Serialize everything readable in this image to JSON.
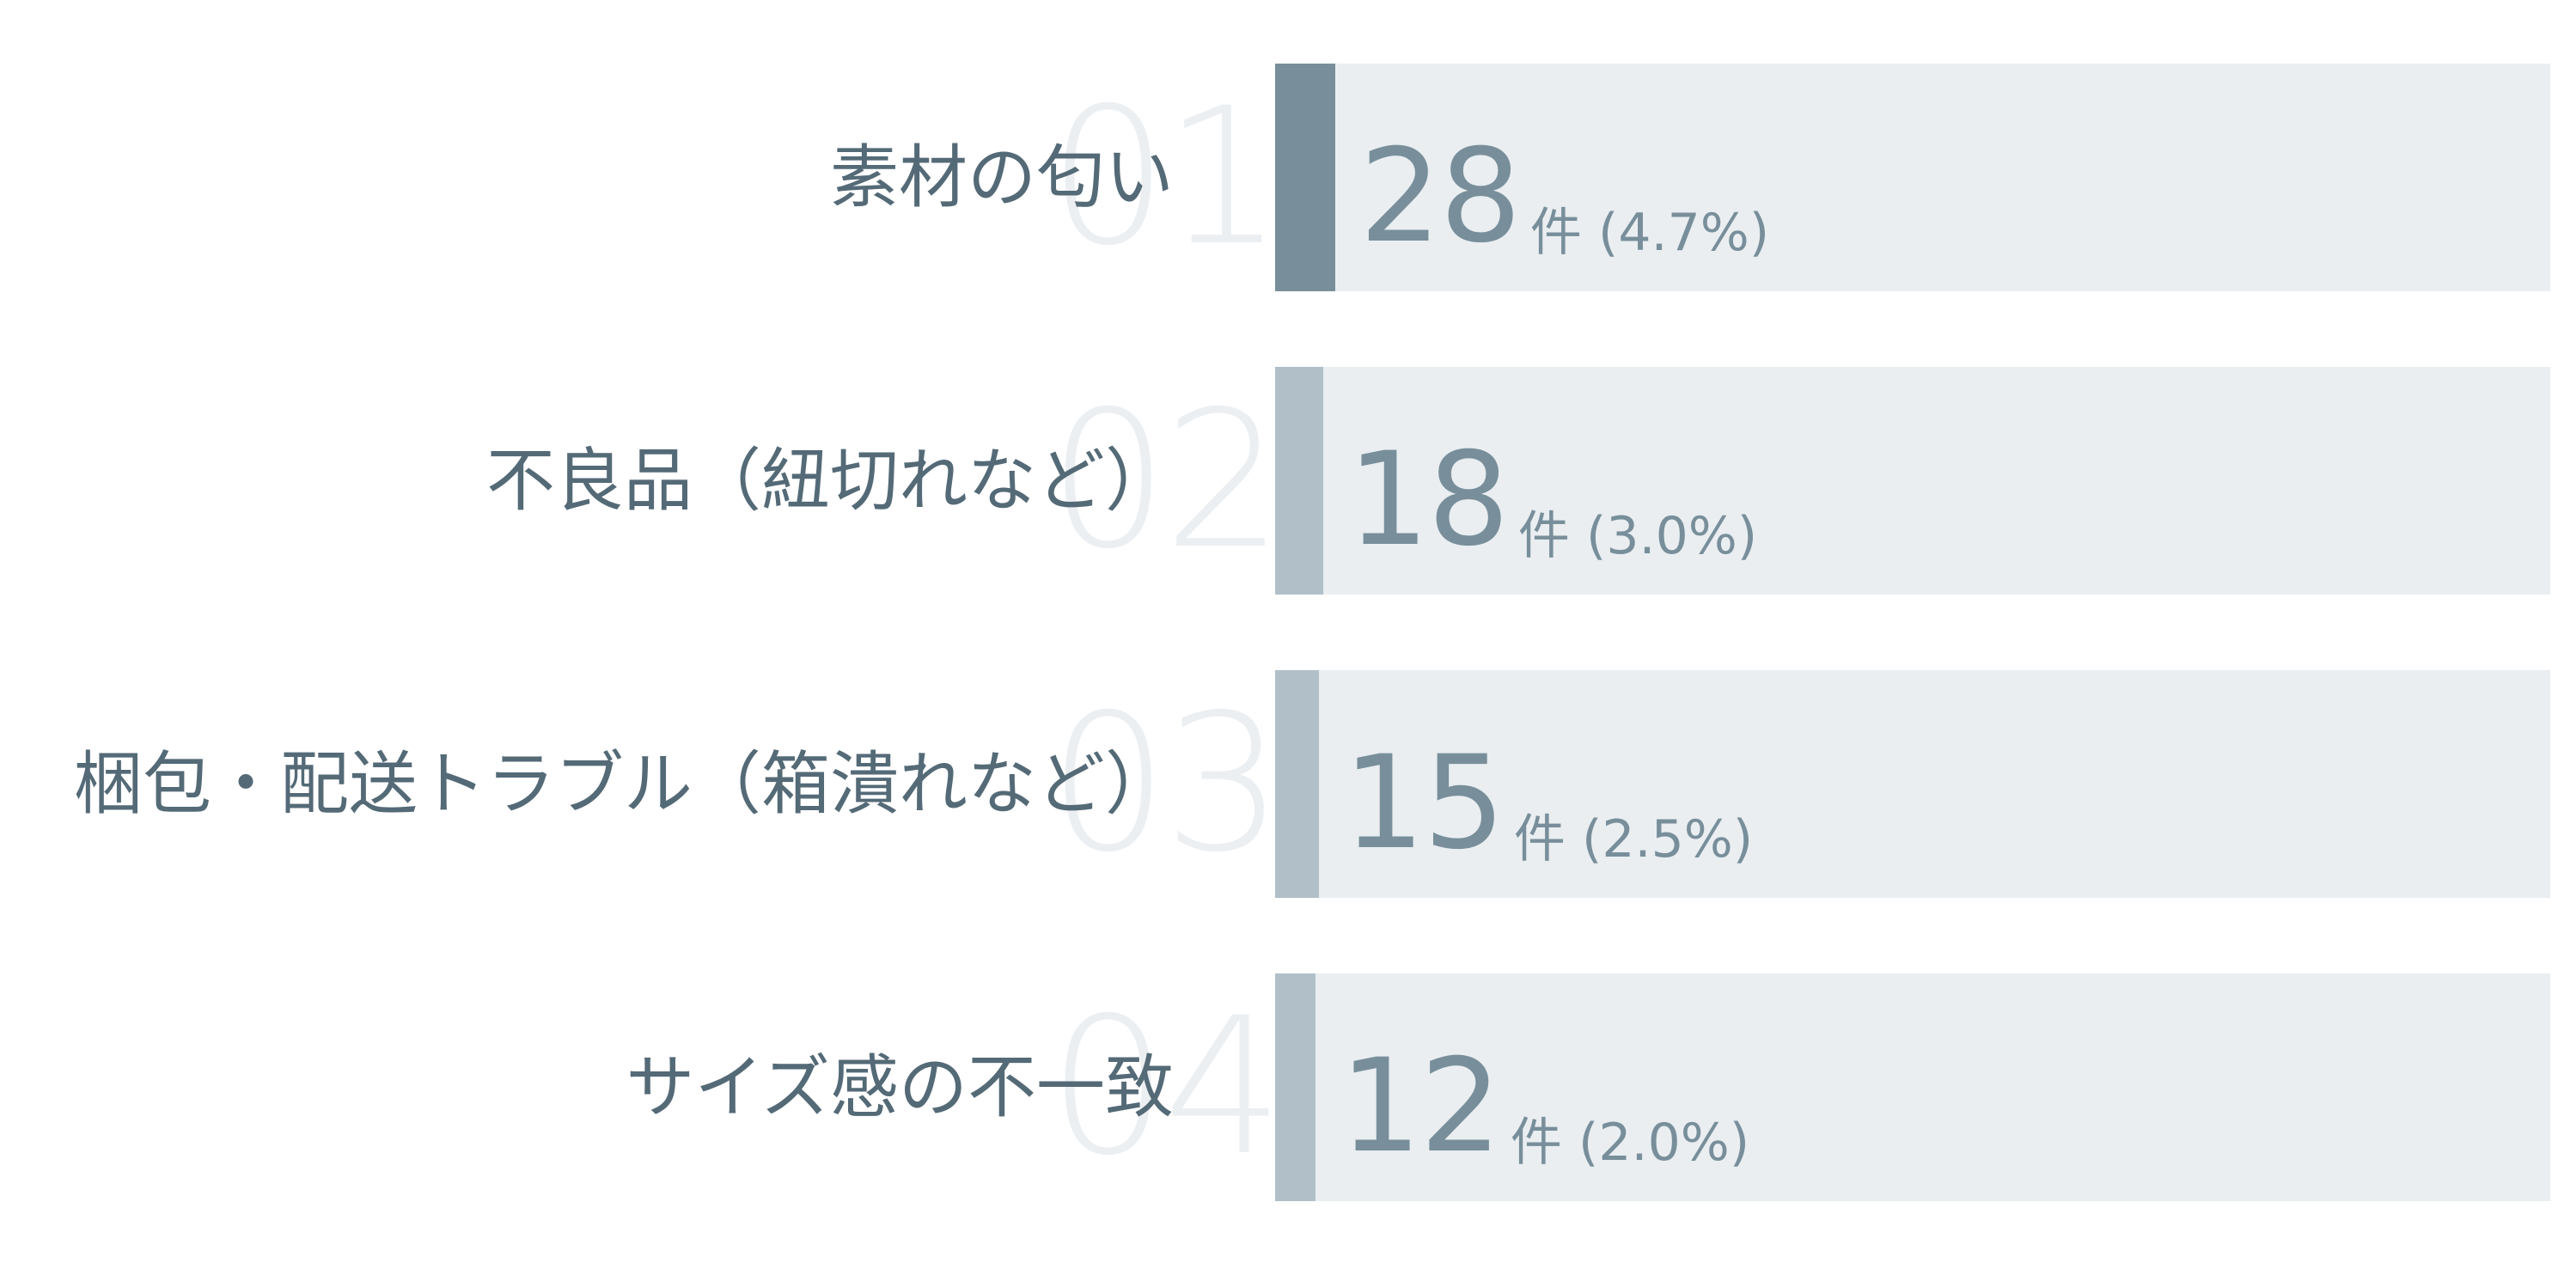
{
  "chart_data": {
    "type": "bar",
    "orientation": "horizontal",
    "categories": [
      "素材の匂い",
      "不良品（紐切れなど）",
      "梱包・配送トラブル（箱潰れなど）",
      "サイズ感の不一致"
    ],
    "ranks": [
      "01",
      "02",
      "03",
      "04"
    ],
    "values": [
      28,
      18,
      15,
      12
    ],
    "percent_labels": [
      "(4.7%)",
      "(3.0%)",
      "(2.5%)",
      "(2.0%)"
    ],
    "unit": "件",
    "percent_scale_max": 100,
    "grid": false,
    "legend": "none"
  },
  "colors": {
    "top_bar": "#788f9b",
    "other_bar": "#b0bfc8",
    "track": "#eaeef1",
    "label": "#546a77",
    "value": "#788f9b",
    "rank": "#eceff2"
  }
}
